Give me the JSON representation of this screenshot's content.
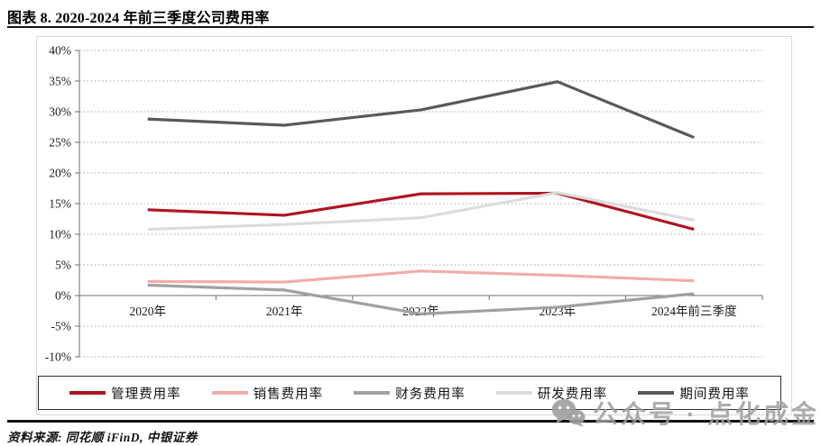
{
  "header": {
    "title": "图表 8. 2020-2024 年前三季度公司费用率"
  },
  "footer": {
    "source_note": "资料来源: 同花顺 iFinD, 中银证券"
  },
  "watermark": {
    "icon": "wechat-icon",
    "text": "公众号 · 点化成金"
  },
  "colors": {
    "management": "#AE1423",
    "selling": "#F0ACA9",
    "financial": "#A0A0A0",
    "rnd": "#DCDCDC",
    "period": "#595959",
    "gridline": "#ababab",
    "axis": "#6e6e6e",
    "watermark_gray": "#9e9e9e"
  },
  "chart_data": {
    "type": "line",
    "title": "2020-2024 年前三季度公司费用率",
    "categories": [
      "2020年",
      "2021年",
      "2022年",
      "2023年",
      "2024年前三季度"
    ],
    "series": [
      {
        "name": "管理费用率",
        "color": "#AE1423",
        "values": [
          14.0,
          13.1,
          16.6,
          16.7,
          10.8
        ]
      },
      {
        "name": "销售费用率",
        "color": "#F0ACA9",
        "values": [
          2.3,
          2.2,
          4.0,
          3.3,
          2.4
        ]
      },
      {
        "name": "财务费用率",
        "color": "#A0A0A0",
        "values": [
          1.7,
          0.9,
          -3.0,
          -1.9,
          0.3
        ]
      },
      {
        "name": "研发费用率",
        "color": "#DCDCDC",
        "values": [
          10.8,
          11.6,
          12.7,
          16.8,
          12.3
        ]
      },
      {
        "name": "期间费用率",
        "color": "#595959",
        "values": [
          28.8,
          27.8,
          30.3,
          34.9,
          25.8
        ]
      }
    ],
    "ylim": [
      -10,
      40
    ],
    "ytick_step": 5,
    "ytick_labels": [
      "40%",
      "35%",
      "30%",
      "25%",
      "20%",
      "15%",
      "10%",
      "5%",
      "0%",
      "-5%",
      "-10%"
    ],
    "ytick_format": "percent",
    "xlabel": "",
    "ylabel": "",
    "grid": "horizontal-dotted",
    "legend_position": "bottom-boxed-horizontal"
  }
}
